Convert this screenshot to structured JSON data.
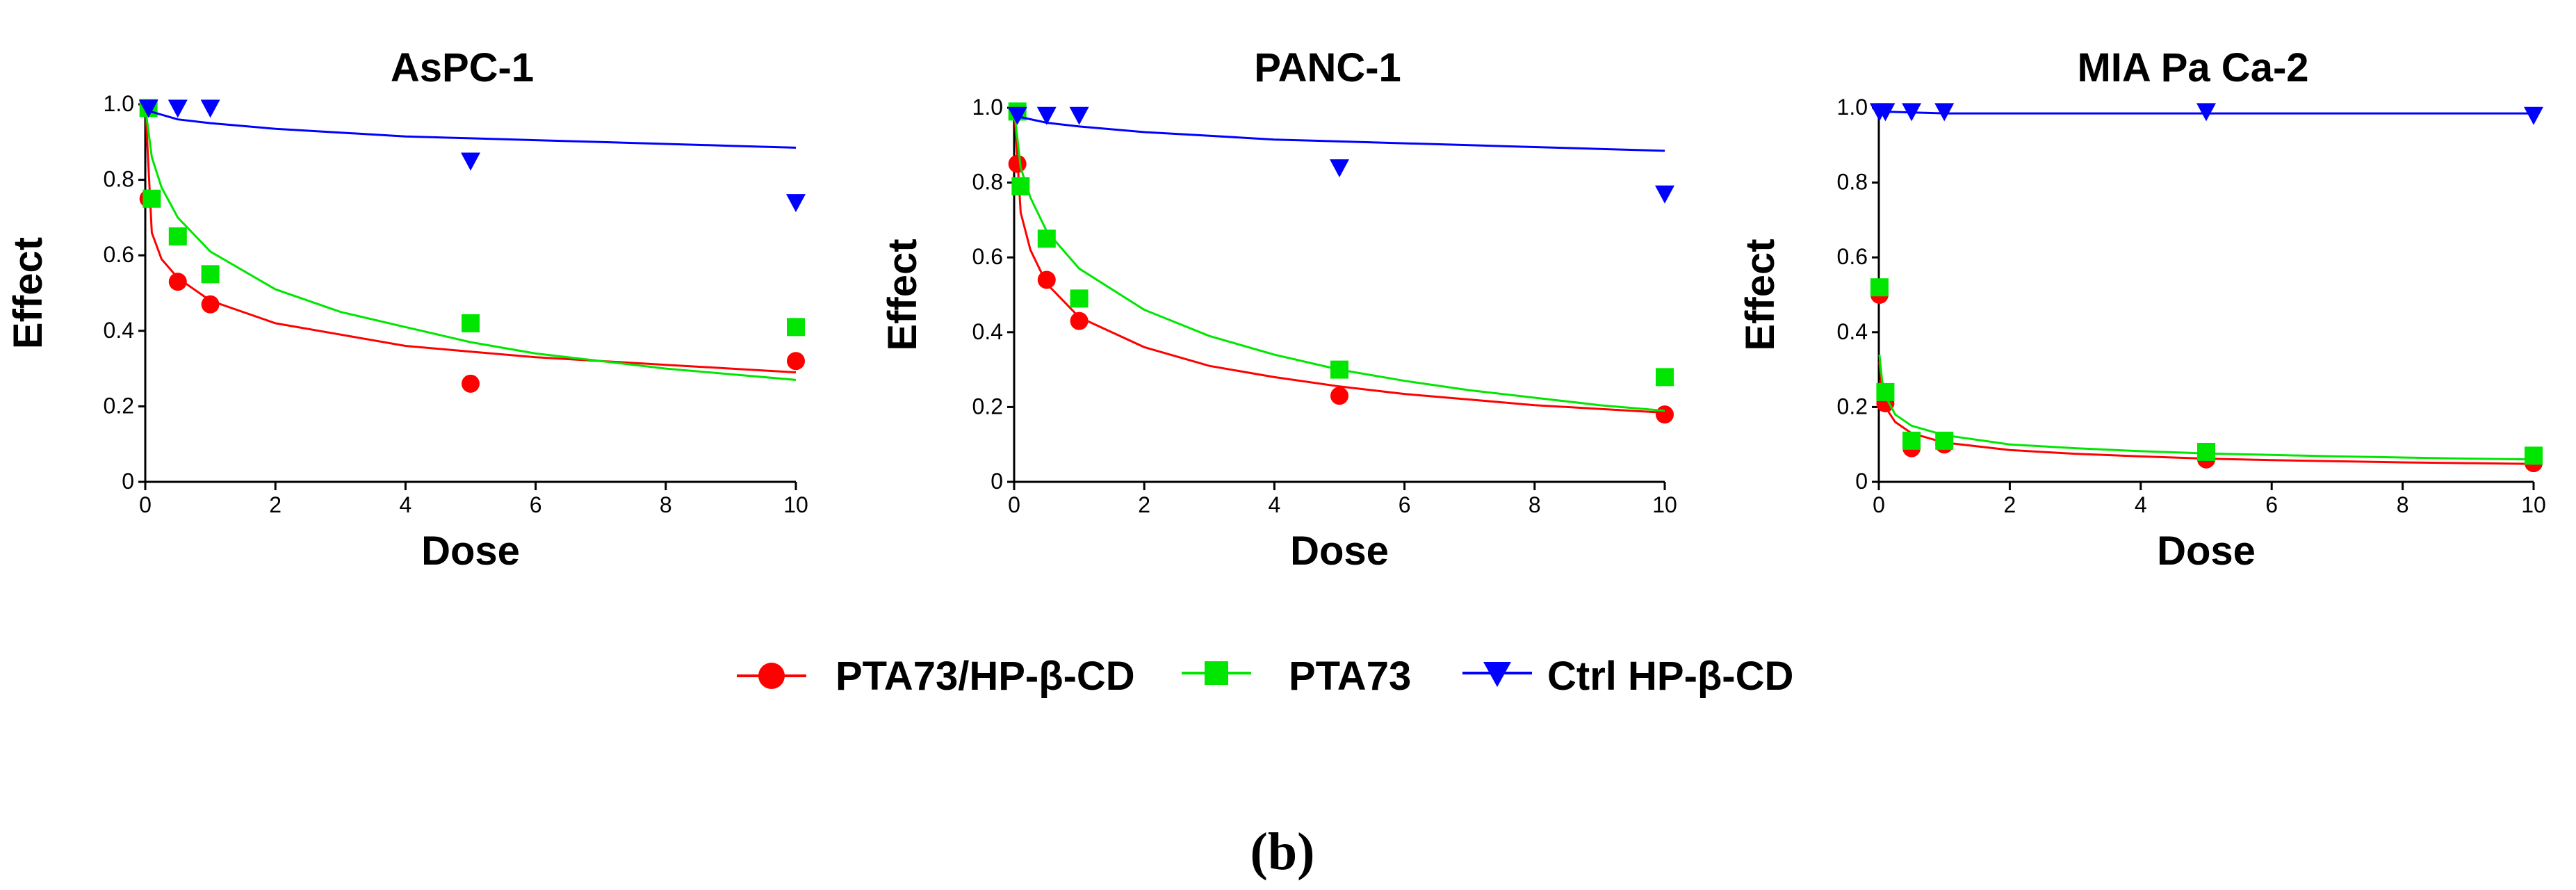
{
  "figure": {
    "caption": "(b)",
    "legend": [
      {
        "label": "PTA73/HP-β-CD",
        "color": "#ff0000",
        "marker": "circle"
      },
      {
        "label": "PTA73",
        "color": "#00e600",
        "marker": "square"
      },
      {
        "label": "Ctrl HP-β-CD",
        "color": "#0000ff",
        "marker": "triangle-down"
      }
    ]
  },
  "chart_data": [
    {
      "type": "scatter",
      "title": "AsPC-1",
      "xlabel": "Dose",
      "ylabel": "Effect",
      "xlim": [
        0,
        10
      ],
      "ylim": [
        0,
        1.0
      ],
      "xticks": [
        "0",
        "2",
        "4",
        "6",
        "8",
        "10"
      ],
      "yticks": [
        "0",
        "0.2",
        "0.4",
        "0.6",
        "0.8",
        "1.0"
      ],
      "series": [
        {
          "name": "PTA73/HP-β-CD",
          "color": "#ff0000",
          "marker": "circle",
          "x": [
            0.05,
            0.5,
            1,
            5,
            10
          ],
          "y": [
            0.75,
            0.53,
            0.47,
            0.26,
            0.32
          ],
          "fit": {
            "x": [
              0.01,
              0.1,
              0.25,
              0.5,
              1,
              2,
              3,
              4,
              5,
              6,
              7,
              8,
              9,
              10
            ],
            "y": [
              0.97,
              0.66,
              0.59,
              0.54,
              0.48,
              0.42,
              0.39,
              0.36,
              0.345,
              0.33,
              0.32,
              0.31,
              0.3,
              0.29
            ]
          }
        },
        {
          "name": "PTA73",
          "color": "#00e600",
          "marker": "square",
          "x": [
            0.05,
            0.1,
            0.5,
            1,
            5,
            10
          ],
          "y": [
            0.99,
            0.75,
            0.65,
            0.55,
            0.42,
            0.41
          ],
          "fit": {
            "x": [
              0.01,
              0.1,
              0.25,
              0.5,
              1,
              2,
              3,
              4,
              5,
              6,
              7,
              8,
              9,
              10
            ],
            "y": [
              0.98,
              0.86,
              0.78,
              0.7,
              0.61,
              0.51,
              0.45,
              0.41,
              0.37,
              0.34,
              0.32,
              0.3,
              0.285,
              0.27
            ]
          }
        },
        {
          "name": "Ctrl HP-β-CD",
          "color": "#0000ff",
          "marker": "triangle-down",
          "x": [
            0.05,
            0.5,
            1,
            5,
            10
          ],
          "y": [
            0.99,
            0.99,
            0.99,
            0.85,
            0.74
          ],
          "fit": {
            "x": [
              0.01,
              0.1,
              0.5,
              1,
              2,
              3,
              4,
              5,
              6,
              7,
              8,
              9,
              10
            ],
            "y": [
              0.995,
              0.98,
              0.96,
              0.95,
              0.935,
              0.925,
              0.915,
              0.91,
              0.905,
              0.9,
              0.895,
              0.89,
              0.885
            ]
          }
        }
      ]
    },
    {
      "type": "scatter",
      "title": "PANC-1",
      "xlabel": "Dose",
      "ylabel": "Effect",
      "xlim": [
        0,
        10
      ],
      "ylim": [
        0,
        1.0
      ],
      "xticks": [
        "0",
        "2",
        "4",
        "6",
        "8",
        "10"
      ],
      "yticks": [
        "0",
        "0.2",
        "0.4",
        "0.6",
        "0.8",
        "1.0"
      ],
      "series": [
        {
          "name": "PTA73/HP-β-CD",
          "color": "#ff0000",
          "marker": "circle",
          "x": [
            0.05,
            0.5,
            1,
            5,
            10
          ],
          "y": [
            0.85,
            0.54,
            0.43,
            0.23,
            0.18
          ],
          "fit": {
            "x": [
              0.01,
              0.1,
              0.25,
              0.5,
              1,
              2,
              3,
              4,
              5,
              6,
              7,
              8,
              9,
              10
            ],
            "y": [
              0.98,
              0.72,
              0.62,
              0.53,
              0.44,
              0.36,
              0.31,
              0.28,
              0.255,
              0.235,
              0.22,
              0.205,
              0.195,
              0.185
            ]
          }
        },
        {
          "name": "PTA73",
          "color": "#00e600",
          "marker": "square",
          "x": [
            0.05,
            0.1,
            0.5,
            1,
            5,
            10
          ],
          "y": [
            0.99,
            0.79,
            0.65,
            0.49,
            0.3,
            0.28
          ],
          "fit": {
            "x": [
              0.01,
              0.1,
              0.25,
              0.5,
              1,
              2,
              3,
              4,
              5,
              6,
              7,
              8,
              9,
              10
            ],
            "y": [
              0.98,
              0.84,
              0.76,
              0.67,
              0.57,
              0.46,
              0.39,
              0.34,
              0.3,
              0.27,
              0.245,
              0.225,
              0.205,
              0.19
            ]
          }
        },
        {
          "name": "Ctrl HP-β-CD",
          "color": "#0000ff",
          "marker": "triangle-down",
          "x": [
            0.05,
            0.5,
            1,
            5,
            10
          ],
          "y": [
            0.98,
            0.98,
            0.98,
            0.84,
            0.77
          ],
          "fit": {
            "x": [
              0.01,
              0.1,
              0.5,
              1,
              2,
              3,
              4,
              5,
              6,
              7,
              8,
              9,
              10
            ],
            "y": [
              0.99,
              0.975,
              0.96,
              0.95,
              0.935,
              0.925,
              0.915,
              0.91,
              0.905,
              0.9,
              0.895,
              0.89,
              0.885
            ]
          }
        }
      ]
    },
    {
      "type": "scatter",
      "title": "MIA Pa Ca-2",
      "xlabel": "Dose",
      "ylabel": "Effect",
      "xlim": [
        0,
        10
      ],
      "ylim": [
        0,
        1.0
      ],
      "xticks": [
        "0",
        "2",
        "4",
        "6",
        "8",
        "10"
      ],
      "yticks": [
        "0",
        "0.2",
        "0.4",
        "0.6",
        "0.8",
        "1.0"
      ],
      "series": [
        {
          "name": "PTA73/HP-β-CD",
          "color": "#ff0000",
          "marker": "circle",
          "x": [
            0.01,
            0.1,
            0.5,
            1,
            5,
            10
          ],
          "y": [
            0.5,
            0.21,
            0.09,
            0.1,
            0.06,
            0.05
          ],
          "fit": {
            "x": [
              0.01,
              0.05,
              0.1,
              0.25,
              0.5,
              1,
              2,
              3,
              4,
              5,
              6,
              7,
              8,
              9,
              10
            ],
            "y": [
              0.32,
              0.24,
              0.2,
              0.16,
              0.13,
              0.105,
              0.085,
              0.075,
              0.068,
              0.062,
              0.058,
              0.055,
              0.052,
              0.05,
              0.048
            ]
          }
        },
        {
          "name": "PTA73",
          "color": "#00e600",
          "marker": "square",
          "x": [
            0.01,
            0.1,
            0.5,
            1,
            5,
            10
          ],
          "y": [
            0.52,
            0.24,
            0.11,
            0.11,
            0.08,
            0.07
          ],
          "fit": {
            "x": [
              0.01,
              0.05,
              0.1,
              0.25,
              0.5,
              1,
              2,
              3,
              4,
              5,
              6,
              7,
              8,
              9,
              10
            ],
            "y": [
              0.34,
              0.27,
              0.23,
              0.18,
              0.15,
              0.125,
              0.1,
              0.09,
              0.082,
              0.076,
              0.072,
              0.068,
              0.065,
              0.062,
              0.06
            ]
          }
        },
        {
          "name": "Ctrl HP-β-CD",
          "color": "#0000ff",
          "marker": "triangle-down",
          "x": [
            0.01,
            0.1,
            0.5,
            1,
            5,
            10
          ],
          "y": [
            0.99,
            0.99,
            0.99,
            0.99,
            0.99,
            0.98
          ],
          "fit": {
            "x": [
              0.01,
              1,
              5,
              10
            ],
            "y": [
              0.99,
              0.985,
              0.985,
              0.985
            ]
          }
        }
      ]
    }
  ]
}
